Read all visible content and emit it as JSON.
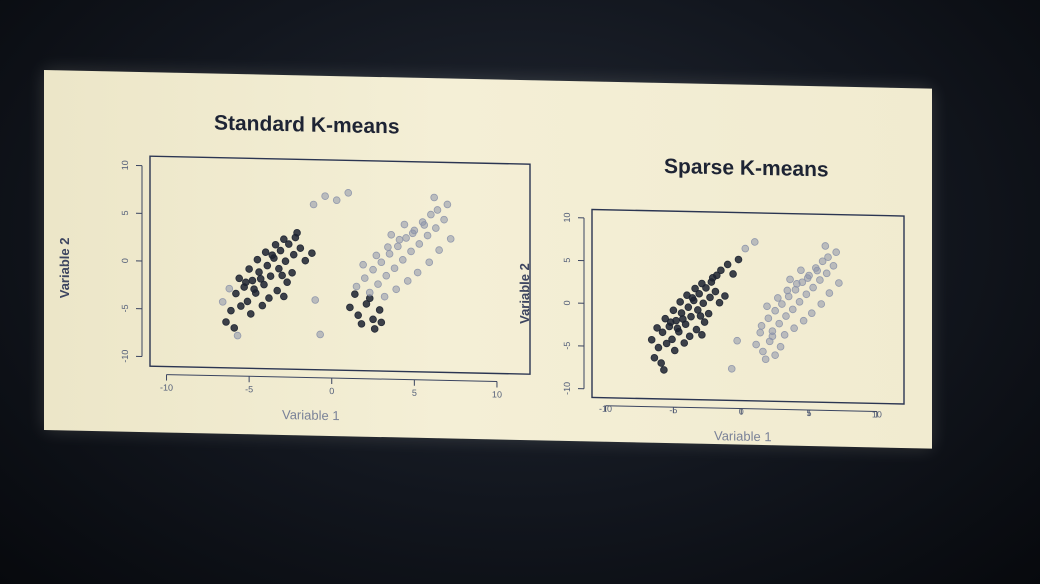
{
  "chart_data": [
    {
      "type": "scatter",
      "title": "Standard K-means",
      "xlabel": "Variable 1",
      "ylabel": "Variable 2",
      "xlim": [
        -11,
        12
      ],
      "ylim": [
        -11,
        11
      ],
      "xticks": [
        "-10",
        "-5",
        "0",
        "5",
        "10"
      ],
      "yticks": [
        "10",
        "5",
        "0",
        "-5",
        "-10"
      ],
      "series": [
        {
          "color": "#1c2230",
          "points": [
            [
              -5.8,
              -3.2
            ],
            [
              -5.3,
              -2.5
            ],
            [
              -4.8,
              -1.8
            ],
            [
              -4.4,
              -0.9
            ],
            [
              -3.9,
              -0.2
            ],
            [
              -3.5,
              0.6
            ],
            [
              -3.1,
              1.4
            ],
            [
              -2.6,
              2.1
            ],
            [
              -2.2,
              2.8
            ],
            [
              -5.1,
              -4.0
            ],
            [
              -4.6,
              -3.1
            ],
            [
              -4.1,
              -2.2
            ],
            [
              -3.7,
              -1.3
            ],
            [
              -3.2,
              -0.5
            ],
            [
              -2.8,
              0.3
            ],
            [
              -2.3,
              1.0
            ],
            [
              -1.9,
              1.7
            ],
            [
              -5.6,
              -1.6
            ],
            [
              -5.0,
              -0.6
            ],
            [
              -4.5,
              0.4
            ],
            [
              -4.0,
              1.2
            ],
            [
              -3.4,
              2.0
            ],
            [
              -2.9,
              2.6
            ],
            [
              -6.1,
              -5.0
            ],
            [
              -5.5,
              -4.5
            ],
            [
              -4.9,
              -5.3
            ],
            [
              -4.2,
              -4.4
            ],
            [
              -3.8,
              -3.6
            ],
            [
              -3.3,
              -2.8
            ],
            [
              -2.7,
              -1.9
            ],
            [
              -2.4,
              -0.9
            ],
            [
              -1.6,
              0.4
            ],
            [
              -1.2,
              1.2
            ],
            [
              -6.4,
              -6.2
            ],
            [
              -5.9,
              -6.8
            ],
            [
              -4.7,
              -2.7
            ],
            [
              -3.6,
              0.9
            ],
            [
              -2.1,
              3.3
            ],
            [
              -2.9,
              -3.4
            ],
            [
              -3.0,
              -1.2
            ],
            [
              -4.3,
              -1.6
            ],
            [
              -5.2,
              -2.0
            ],
            [
              1.1,
              -4.4
            ],
            [
              1.6,
              -5.2
            ],
            [
              2.1,
              -4.0
            ],
            [
              2.5,
              -5.6
            ],
            [
              1.8,
              -6.1
            ],
            [
              2.9,
              -4.6
            ],
            [
              2.3,
              -3.4
            ],
            [
              1.4,
              -3.0
            ],
            [
              3.0,
              -5.9
            ],
            [
              2.6,
              -6.6
            ]
          ]
        },
        {
          "color": "#8c94aa",
          "points": [
            [
              1.5,
              -2.2
            ],
            [
              2.0,
              -1.3
            ],
            [
              2.5,
              -0.4
            ],
            [
              3.0,
              0.4
            ],
            [
              3.5,
              1.3
            ],
            [
              4.0,
              2.1
            ],
            [
              4.5,
              3.0
            ],
            [
              5.0,
              3.8
            ],
            [
              5.5,
              4.7
            ],
            [
              6.0,
              5.5
            ],
            [
              2.3,
              -2.8
            ],
            [
              2.8,
              -1.9
            ],
            [
              3.3,
              -1.0
            ],
            [
              3.8,
              -0.2
            ],
            [
              4.3,
              0.7
            ],
            [
              4.8,
              1.6
            ],
            [
              5.3,
              2.4
            ],
            [
              5.8,
              3.3
            ],
            [
              6.3,
              4.1
            ],
            [
              6.8,
              5.0
            ],
            [
              1.9,
              0.1
            ],
            [
              2.7,
              1.1
            ],
            [
              3.4,
              2.0
            ],
            [
              4.1,
              2.8
            ],
            [
              4.9,
              3.5
            ],
            [
              5.6,
              4.4
            ],
            [
              6.4,
              6.0
            ],
            [
              7.0,
              6.6
            ],
            [
              3.2,
              -3.2
            ],
            [
              3.9,
              -2.4
            ],
            [
              4.6,
              -1.5
            ],
            [
              5.2,
              -0.6
            ],
            [
              5.9,
              0.5
            ],
            [
              6.5,
              1.8
            ],
            [
              7.2,
              3.0
            ],
            [
              4.4,
              4.4
            ],
            [
              3.6,
              3.3
            ],
            [
              6.2,
              7.3
            ],
            [
              0.3,
              6.8
            ],
            [
              -0.4,
              7.2
            ],
            [
              1.0,
              7.6
            ],
            [
              -1.1,
              6.3
            ],
            [
              -6.6,
              -4.1
            ],
            [
              -6.2,
              -2.7
            ],
            [
              -1.0,
              -3.7
            ],
            [
              -0.7,
              -7.3
            ],
            [
              -5.7,
              -7.6
            ]
          ]
        }
      ]
    },
    {
      "type": "scatter",
      "title": "Sparse K-means",
      "xlabel": "Variable 1",
      "ylabel": "Variable 2",
      "xlim": [
        -11,
        12
      ],
      "ylim": [
        -11,
        11
      ],
      "xticks": [
        "-10",
        "-5",
        "0",
        "5",
        "10"
      ],
      "yticks": [
        "10",
        "5",
        "0",
        "-5",
        "-10"
      ],
      "series": [
        {
          "color": "#1c2230",
          "points": [
            [
              -5.8,
              -3.2
            ],
            [
              -5.3,
              -2.5
            ],
            [
              -4.8,
              -1.8
            ],
            [
              -4.4,
              -0.9
            ],
            [
              -3.9,
              -0.2
            ],
            [
              -3.5,
              0.6
            ],
            [
              -3.1,
              1.4
            ],
            [
              -2.6,
              2.1
            ],
            [
              -2.2,
              2.8
            ],
            [
              -5.1,
              -4.0
            ],
            [
              -4.6,
              -3.1
            ],
            [
              -4.1,
              -2.2
            ],
            [
              -3.7,
              -1.3
            ],
            [
              -3.2,
              -0.5
            ],
            [
              -2.8,
              0.3
            ],
            [
              -2.3,
              1.0
            ],
            [
              -1.9,
              1.7
            ],
            [
              -5.6,
              -1.6
            ],
            [
              -5.0,
              -0.6
            ],
            [
              -4.5,
              0.4
            ],
            [
              -4.0,
              1.2
            ],
            [
              -3.4,
              2.0
            ],
            [
              -2.9,
              2.6
            ],
            [
              -6.1,
              -5.0
            ],
            [
              -5.5,
              -4.5
            ],
            [
              -4.9,
              -5.3
            ],
            [
              -4.2,
              -4.4
            ],
            [
              -3.8,
              -3.6
            ],
            [
              -3.3,
              -2.8
            ],
            [
              -2.7,
              -1.9
            ],
            [
              -2.4,
              -0.9
            ],
            [
              -1.6,
              0.4
            ],
            [
              -1.2,
              1.2
            ],
            [
              -6.4,
              -6.2
            ],
            [
              -5.9,
              -6.8
            ],
            [
              -4.7,
              -2.7
            ],
            [
              -3.6,
              0.9
            ],
            [
              -2.1,
              3.3
            ],
            [
              -2.9,
              -3.4
            ],
            [
              -3.0,
              -1.2
            ],
            [
              -4.3,
              -1.6
            ],
            [
              -5.2,
              -2.0
            ],
            [
              -1.5,
              4.2
            ],
            [
              -1.0,
              4.9
            ],
            [
              -0.6,
              3.8
            ],
            [
              -0.2,
              5.5
            ],
            [
              -1.8,
              3.6
            ],
            [
              -6.6,
              -4.1
            ],
            [
              -6.2,
              -2.7
            ],
            [
              -5.7,
              -7.6
            ]
          ]
        },
        {
          "color": "#8c94aa",
          "points": [
            [
              1.5,
              -2.2
            ],
            [
              2.0,
              -1.3
            ],
            [
              2.5,
              -0.4
            ],
            [
              3.0,
              0.4
            ],
            [
              3.5,
              1.3
            ],
            [
              4.0,
              2.1
            ],
            [
              4.5,
              3.0
            ],
            [
              5.0,
              3.8
            ],
            [
              5.5,
              4.7
            ],
            [
              6.0,
              5.5
            ],
            [
              2.3,
              -2.8
            ],
            [
              2.8,
              -1.9
            ],
            [
              3.3,
              -1.0
            ],
            [
              3.8,
              -0.2
            ],
            [
              4.3,
              0.7
            ],
            [
              4.8,
              1.6
            ],
            [
              5.3,
              2.4
            ],
            [
              5.8,
              3.3
            ],
            [
              6.3,
              4.1
            ],
            [
              6.8,
              5.0
            ],
            [
              1.9,
              0.1
            ],
            [
              2.7,
              1.1
            ],
            [
              3.4,
              2.0
            ],
            [
              4.1,
              2.8
            ],
            [
              4.9,
              3.5
            ],
            [
              5.6,
              4.4
            ],
            [
              6.4,
              6.0
            ],
            [
              7.0,
              6.6
            ],
            [
              3.2,
              -3.2
            ],
            [
              3.9,
              -2.4
            ],
            [
              4.6,
              -1.5
            ],
            [
              5.2,
              -0.6
            ],
            [
              5.9,
              0.5
            ],
            [
              6.5,
              1.8
            ],
            [
              7.2,
              3.0
            ],
            [
              4.4,
              4.4
            ],
            [
              3.6,
              3.3
            ],
            [
              6.2,
              7.3
            ],
            [
              1.1,
              -4.4
            ],
            [
              1.6,
              -5.2
            ],
            [
              2.1,
              -4.0
            ],
            [
              2.5,
              -5.6
            ],
            [
              1.8,
              -6.1
            ],
            [
              2.9,
              -4.6
            ],
            [
              2.3,
              -3.4
            ],
            [
              1.4,
              -3.0
            ],
            [
              0.3,
              6.8
            ],
            [
              1.0,
              7.6
            ],
            [
              -0.7,
              -7.3
            ],
            [
              -0.3,
              -4.0
            ]
          ]
        }
      ]
    }
  ]
}
